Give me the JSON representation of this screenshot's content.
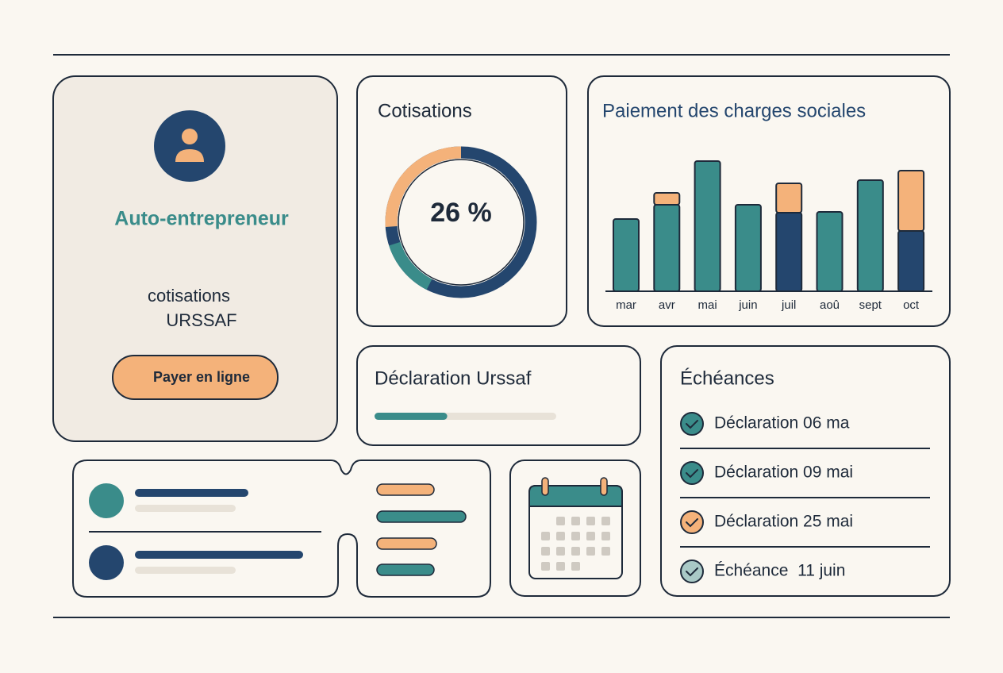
{
  "profile": {
    "title": "Auto-entrepreneur",
    "lines": [
      "cotisations",
      "URSSAF"
    ],
    "button": "Payer en ligne"
  },
  "cotisations": {
    "title": "Cotisations",
    "value": 26,
    "value_label": "26 %",
    "color": "#f4b27a"
  },
  "chart_data": {
    "type": "bar",
    "title": "Paiement des charges sociales",
    "categories": [
      "mar",
      "avr",
      "mai",
      "juin",
      "juil",
      "aoû",
      "sept",
      "oct"
    ],
    "series": [
      {
        "colors": [
          "#3a8c8a",
          "#3a8c8a",
          "#3a8c8a",
          "#3a8c8a",
          "#24466e",
          "#3a8c8a",
          "#3a8c8a",
          "#24466e"
        ],
        "values": [
          91,
          109,
          164,
          109,
          99,
          100,
          140,
          76
        ]
      },
      {
        "color": "#f4b27a",
        "values": [
          null,
          15,
          null,
          null,
          37,
          null,
          null,
          76
        ]
      }
    ]
  },
  "declaration": {
    "title": "Déclaration Urssaf",
    "progress": 40,
    "color": "#3a8c8a"
  },
  "echeances": {
    "title": "Échéances",
    "items": [
      {
        "label": "Déclaration 06 ma",
        "color": "#3a8c8a"
      },
      {
        "label": "Déclaration 09 mai",
        "color": "#3a8c8a"
      },
      {
        "label": "Déclaration 25 mai",
        "color": "#f4b27a"
      },
      {
        "label": "Échéance  11 juin",
        "color": "#a9c9c6"
      }
    ]
  }
}
